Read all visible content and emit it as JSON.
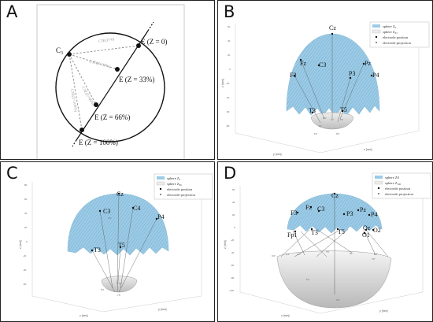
{
  "panels": [
    {
      "id": "A",
      "label": "A"
    },
    {
      "id": "B",
      "label": "B"
    },
    {
      "id": "C",
      "label": "C"
    },
    {
      "id": "D",
      "label": "D"
    }
  ],
  "panel_a": {
    "c3_label": "C",
    "c3_subscript": "3",
    "e0": "E (Z = 0)",
    "e33": "E (Z = 33%)",
    "e66": "E (Z = 66%)",
    "e100": "E (Z = 100%)"
  },
  "legend": {
    "sphere_z0": "sphere Z",
    "sphere_z0_sub": "0",
    "sphere_z33": "sphere Z",
    "sphere_z33_sub": "33",
    "sphere_z66_sub": "66",
    "sphere_z100": "sphere Z0",
    "sphere_z100_b": "sphere Z",
    "sphere_z100_sub": "100",
    "electrode_position": "electrode position",
    "electrode_projection": "electrode projection"
  },
  "axis": {
    "x_label": "x [mm]",
    "y_label": "y [mm]",
    "z_label": "z [mm]"
  },
  "panel_b": {
    "electrodes": [
      "Cz",
      "Fz",
      "C3",
      "Pz",
      "F3",
      "P3",
      "P4",
      "T3",
      "T5"
    ],
    "projections": [
      "Cz'",
      "C3'",
      "Fz'",
      "F3'",
      "Pz'",
      "P3'"
    ]
  },
  "panel_c": {
    "electrodes": [
      "Cz",
      "C3",
      "C4",
      "P4",
      "T3",
      "T5"
    ],
    "projections": [
      "C3'",
      "Cz'",
      "P4'",
      "T5'"
    ]
  },
  "panel_d": {
    "electrodes": [
      "Cz",
      "F3",
      "Fz",
      "C3",
      "P3",
      "Pz",
      "P4",
      "Oz",
      "O2",
      "Fp1",
      "T3",
      "T5",
      "O1"
    ],
    "projections": [
      "O2''",
      "O1''",
      "Oz''",
      "T5''",
      "Pz''",
      "P4''",
      "T3''",
      "Fp''",
      "Cz''"
    ]
  }
}
